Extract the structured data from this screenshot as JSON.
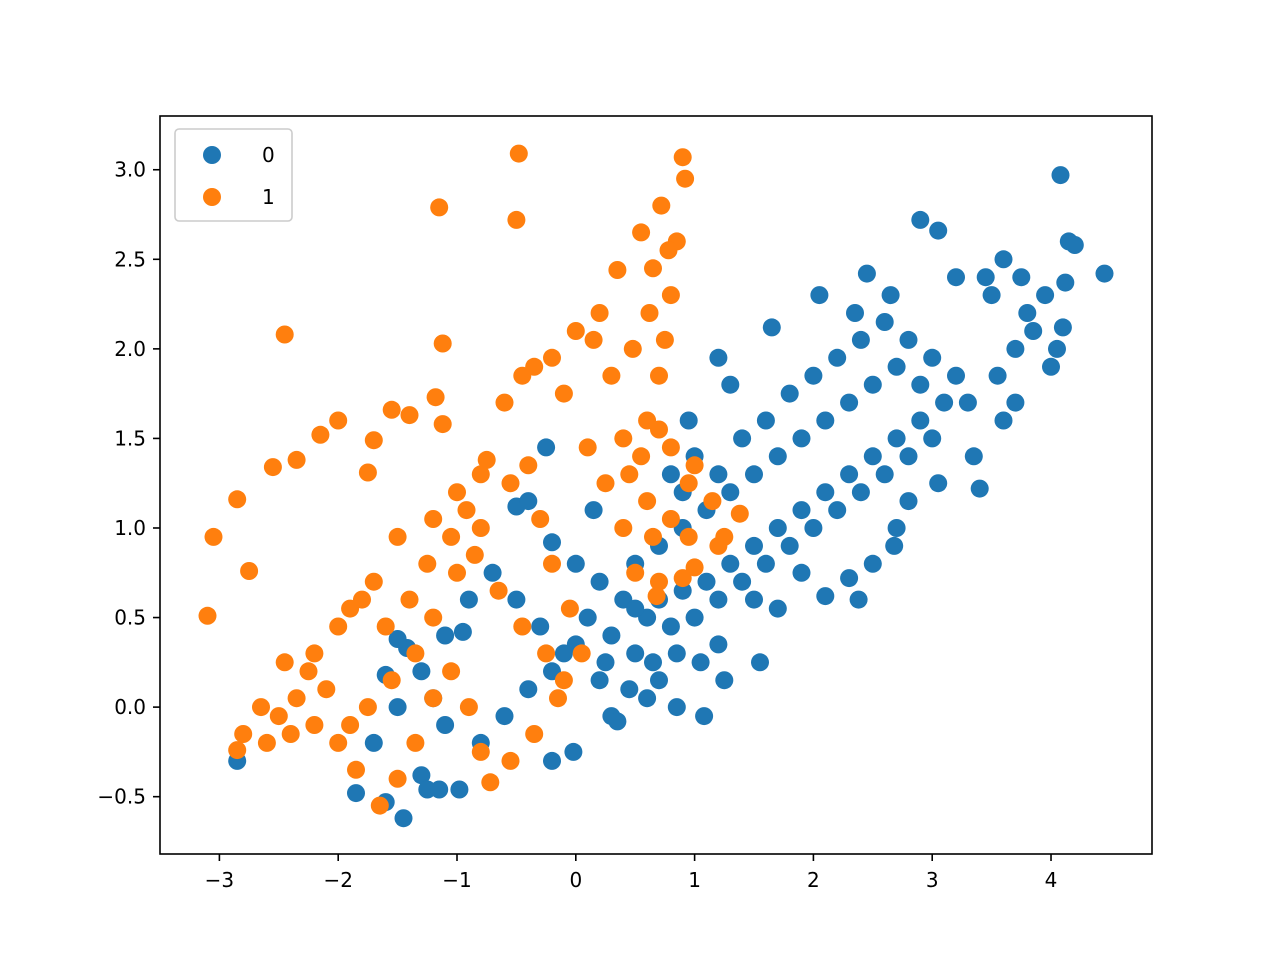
{
  "chart_data": {
    "type": "scatter",
    "title": "",
    "xlabel": "",
    "ylabel": "",
    "xlim": [
      -3.5,
      4.85
    ],
    "ylim": [
      -0.82,
      3.3
    ],
    "xticks": [
      -3,
      -2,
      -1,
      0,
      1,
      2,
      3,
      4
    ],
    "yticks": [
      -0.5,
      0.0,
      0.5,
      1.0,
      1.5,
      2.0,
      2.5,
      3.0
    ],
    "xtick_labels": [
      "−3",
      "−2",
      "−1",
      "0",
      "1",
      "2",
      "3",
      "4"
    ],
    "ytick_labels": [
      "−0.5",
      "0.0",
      "0.5",
      "1.0",
      "1.5",
      "2.0",
      "2.5",
      "3.0"
    ],
    "grid": false,
    "legend_position": "top-left",
    "series": [
      {
        "name": "0",
        "color": "#1f77b4",
        "points": [
          [
            -2.85,
            -0.3
          ],
          [
            -1.85,
            -0.48
          ],
          [
            -1.6,
            -0.53
          ],
          [
            -1.45,
            -0.62
          ],
          [
            -1.3,
            -0.38
          ],
          [
            -1.25,
            -0.46
          ],
          [
            -1.15,
            -0.46
          ],
          [
            -0.98,
            -0.46
          ],
          [
            -1.42,
            0.33
          ],
          [
            -1.5,
            0.38
          ],
          [
            -1.6,
            0.18
          ],
          [
            -1.2,
            0.05
          ],
          [
            -0.95,
            0.42
          ],
          [
            -0.5,
            1.12
          ],
          [
            -0.4,
            1.15
          ],
          [
            -0.25,
            1.45
          ],
          [
            -0.2,
            0.92
          ],
          [
            0.0,
            0.8
          ],
          [
            0.15,
            1.1
          ],
          [
            0.5,
            0.3
          ],
          [
            0.3,
            -0.05
          ],
          [
            0.6,
            0.05
          ],
          [
            0.85,
            0.0
          ],
          [
            1.08,
            -0.05
          ],
          [
            0.35,
            -0.08
          ],
          [
            -0.2,
            -0.3
          ],
          [
            -0.02,
            -0.25
          ],
          [
            0.25,
            0.25
          ],
          [
            0.7,
            0.15
          ],
          [
            1.2,
            0.35
          ],
          [
            1.55,
            0.25
          ],
          [
            1.5,
            0.6
          ],
          [
            1.7,
            0.55
          ],
          [
            1.9,
            0.75
          ],
          [
            2.1,
            0.62
          ],
          [
            2.3,
            0.72
          ],
          [
            2.38,
            0.6
          ],
          [
            2.5,
            0.8
          ],
          [
            2.7,
            1.0
          ],
          [
            2.68,
            0.9
          ],
          [
            2.8,
            1.15
          ],
          [
            3.05,
            1.25
          ],
          [
            3.4,
            1.22
          ],
          [
            3.35,
            1.4
          ],
          [
            3.6,
            1.6
          ],
          [
            3.7,
            1.7
          ],
          [
            4.0,
            1.9
          ],
          [
            4.05,
            2.0
          ],
          [
            4.1,
            2.12
          ],
          [
            4.12,
            2.37
          ],
          [
            4.45,
            2.42
          ],
          [
            4.15,
            2.6
          ],
          [
            4.2,
            2.58
          ],
          [
            4.08,
            2.97
          ],
          [
            3.6,
            2.5
          ],
          [
            3.45,
            2.4
          ],
          [
            3.2,
            2.4
          ],
          [
            2.9,
            2.72
          ],
          [
            3.05,
            2.66
          ],
          [
            2.45,
            2.42
          ],
          [
            2.65,
            2.3
          ],
          [
            2.35,
            2.2
          ],
          [
            2.05,
            2.3
          ],
          [
            1.65,
            2.12
          ],
          [
            1.2,
            1.95
          ],
          [
            1.3,
            1.8
          ],
          [
            0.95,
            1.6
          ],
          [
            1.0,
            1.4
          ],
          [
            0.8,
            1.3
          ],
          [
            0.9,
            1.2
          ],
          [
            1.2,
            1.3
          ],
          [
            1.4,
            1.5
          ],
          [
            1.6,
            1.6
          ],
          [
            1.8,
            1.75
          ],
          [
            2.0,
            1.85
          ],
          [
            2.2,
            1.95
          ],
          [
            2.4,
            2.05
          ],
          [
            2.6,
            2.15
          ],
          [
            2.8,
            2.05
          ],
          [
            3.0,
            1.95
          ],
          [
            3.2,
            1.85
          ],
          [
            3.3,
            1.7
          ],
          [
            3.0,
            1.5
          ],
          [
            2.8,
            1.4
          ],
          [
            2.6,
            1.3
          ],
          [
            2.4,
            1.2
          ],
          [
            2.2,
            1.1
          ],
          [
            2.0,
            1.0
          ],
          [
            1.8,
            0.9
          ],
          [
            1.6,
            0.8
          ],
          [
            1.4,
            0.7
          ],
          [
            1.2,
            0.6
          ],
          [
            1.0,
            0.5
          ],
          [
            0.8,
            0.45
          ],
          [
            0.6,
            0.5
          ],
          [
            0.4,
            0.6
          ],
          [
            0.2,
            0.7
          ],
          [
            0.1,
            0.5
          ],
          [
            0.3,
            0.4
          ],
          [
            0.5,
            0.8
          ],
          [
            0.7,
            0.9
          ],
          [
            0.9,
            1.0
          ],
          [
            1.1,
            1.1
          ],
          [
            1.3,
            1.2
          ],
          [
            1.5,
            1.3
          ],
          [
            1.7,
            1.4
          ],
          [
            1.9,
            1.5
          ],
          [
            2.1,
            1.6
          ],
          [
            2.3,
            1.7
          ],
          [
            2.5,
            1.8
          ],
          [
            2.7,
            1.9
          ],
          [
            2.9,
            1.8
          ],
          [
            3.1,
            1.7
          ],
          [
            2.9,
            1.6
          ],
          [
            2.7,
            1.5
          ],
          [
            2.5,
            1.4
          ],
          [
            2.3,
            1.3
          ],
          [
            2.1,
            1.2
          ],
          [
            1.9,
            1.1
          ],
          [
            1.7,
            1.0
          ],
          [
            1.5,
            0.9
          ],
          [
            1.3,
            0.8
          ],
          [
            1.1,
            0.7
          ],
          [
            0.9,
            0.65
          ],
          [
            0.7,
            0.6
          ],
          [
            0.5,
            0.55
          ],
          [
            -0.1,
            0.3
          ],
          [
            -0.3,
            0.45
          ],
          [
            -0.5,
            0.6
          ],
          [
            -0.7,
            0.75
          ],
          [
            -0.9,
            0.6
          ],
          [
            -1.1,
            0.4
          ],
          [
            -1.3,
            0.2
          ],
          [
            -1.5,
            0.0
          ],
          [
            -1.7,
            -0.2
          ],
          [
            -1.1,
            -0.1
          ],
          [
            -0.8,
            -0.2
          ],
          [
            -0.6,
            -0.05
          ],
          [
            -0.4,
            0.1
          ],
          [
            -0.2,
            0.2
          ],
          [
            0.0,
            0.35
          ],
          [
            0.2,
            0.15
          ],
          [
            0.45,
            0.1
          ],
          [
            0.65,
            0.25
          ],
          [
            0.85,
            0.3
          ],
          [
            1.05,
            0.25
          ],
          [
            1.25,
            0.15
          ],
          [
            3.5,
            2.3
          ],
          [
            3.8,
            2.2
          ],
          [
            3.7,
            2.0
          ],
          [
            3.55,
            1.85
          ],
          [
            3.75,
            2.4
          ],
          [
            3.95,
            2.3
          ],
          [
            3.85,
            2.1
          ]
        ]
      },
      {
        "name": "1",
        "color": "#ff7f0e",
        "points": [
          [
            -3.1,
            0.51
          ],
          [
            -3.05,
            0.95
          ],
          [
            -2.85,
            1.16
          ],
          [
            -2.75,
            0.76
          ],
          [
            -2.55,
            1.34
          ],
          [
            -2.35,
            1.38
          ],
          [
            -2.45,
            2.08
          ],
          [
            -2.15,
            1.52
          ],
          [
            -2.0,
            1.6
          ],
          [
            -1.75,
            1.31
          ],
          [
            -1.7,
            1.49
          ],
          [
            -1.55,
            1.66
          ],
          [
            -1.4,
            1.63
          ],
          [
            -1.18,
            1.73
          ],
          [
            -1.12,
            1.58
          ],
          [
            -1.15,
            2.79
          ],
          [
            -1.12,
            2.03
          ],
          [
            -0.5,
            2.72
          ],
          [
            -0.48,
            3.09
          ],
          [
            -0.92,
            1.1
          ],
          [
            -0.75,
            1.38
          ],
          [
            -0.45,
            1.85
          ],
          [
            -0.2,
            1.95
          ],
          [
            0.0,
            2.1
          ],
          [
            0.2,
            2.2
          ],
          [
            0.35,
            2.44
          ],
          [
            0.55,
            2.65
          ],
          [
            0.72,
            2.8
          ],
          [
            0.9,
            3.07
          ],
          [
            0.92,
            2.95
          ],
          [
            0.85,
            2.6
          ],
          [
            0.8,
            2.3
          ],
          [
            0.75,
            2.05
          ],
          [
            0.7,
            1.85
          ],
          [
            0.6,
            1.6
          ],
          [
            0.55,
            1.4
          ],
          [
            0.6,
            1.15
          ],
          [
            0.65,
            0.95
          ],
          [
            0.7,
            0.7
          ],
          [
            0.68,
            0.62
          ],
          [
            1.0,
            0.78
          ],
          [
            1.25,
            0.95
          ],
          [
            1.38,
            1.08
          ],
          [
            1.0,
            1.35
          ],
          [
            0.8,
            1.45
          ],
          [
            0.4,
            1.5
          ],
          [
            0.1,
            1.45
          ],
          [
            -0.4,
            1.35
          ],
          [
            -0.8,
            1.3
          ],
          [
            -1.0,
            1.2
          ],
          [
            -1.2,
            1.05
          ],
          [
            -1.5,
            0.95
          ],
          [
            -1.7,
            0.7
          ],
          [
            -1.9,
            0.55
          ],
          [
            -2.0,
            0.45
          ],
          [
            -2.2,
            0.3
          ],
          [
            -2.45,
            0.25
          ],
          [
            -2.65,
            0.0
          ],
          [
            -2.8,
            -0.15
          ],
          [
            -2.85,
            -0.24
          ],
          [
            -2.6,
            -0.2
          ],
          [
            -2.4,
            -0.15
          ],
          [
            -2.2,
            -0.1
          ],
          [
            -2.0,
            -0.2
          ],
          [
            -1.85,
            -0.35
          ],
          [
            -1.65,
            -0.55
          ],
          [
            -1.5,
            -0.4
          ],
          [
            -1.35,
            -0.2
          ],
          [
            -1.2,
            0.05
          ],
          [
            -1.05,
            0.2
          ],
          [
            -0.9,
            0.0
          ],
          [
            -0.8,
            -0.25
          ],
          [
            -0.72,
            -0.42
          ],
          [
            -0.55,
            -0.3
          ],
          [
            -0.35,
            -0.15
          ],
          [
            -0.15,
            0.05
          ],
          [
            0.05,
            0.3
          ],
          [
            -0.05,
            0.55
          ],
          [
            -0.2,
            0.8
          ],
          [
            -0.3,
            1.05
          ],
          [
            -0.55,
            1.25
          ],
          [
            -0.8,
            1.0
          ],
          [
            -1.0,
            0.75
          ],
          [
            -1.2,
            0.5
          ],
          [
            -1.35,
            0.3
          ],
          [
            -1.55,
            0.15
          ],
          [
            -1.75,
            0.0
          ],
          [
            -1.9,
            -0.1
          ],
          [
            -2.1,
            0.1
          ],
          [
            -2.25,
            0.2
          ],
          [
            -2.35,
            0.05
          ],
          [
            -2.5,
            -0.05
          ],
          [
            -1.8,
            0.6
          ],
          [
            -1.6,
            0.45
          ],
          [
            -1.4,
            0.6
          ],
          [
            -1.25,
            0.8
          ],
          [
            -1.05,
            0.95
          ],
          [
            -0.85,
            0.85
          ],
          [
            -0.65,
            0.65
          ],
          [
            -0.45,
            0.45
          ],
          [
            -0.25,
            0.3
          ],
          [
            -0.1,
            0.15
          ],
          [
            0.25,
            1.25
          ],
          [
            0.4,
            1.0
          ],
          [
            0.5,
            0.75
          ],
          [
            0.45,
            1.3
          ],
          [
            0.3,
            1.85
          ],
          [
            0.15,
            2.05
          ],
          [
            -0.1,
            1.75
          ],
          [
            -0.35,
            1.9
          ],
          [
            -0.6,
            1.7
          ],
          [
            0.65,
            2.45
          ],
          [
            0.78,
            2.55
          ],
          [
            0.62,
            2.2
          ],
          [
            0.48,
            2.0
          ],
          [
            0.7,
            1.55
          ],
          [
            0.95,
            1.25
          ],
          [
            1.15,
            1.15
          ],
          [
            1.2,
            0.9
          ],
          [
            0.9,
            0.72
          ],
          [
            0.8,
            1.05
          ],
          [
            0.95,
            0.95
          ]
        ]
      }
    ]
  }
}
